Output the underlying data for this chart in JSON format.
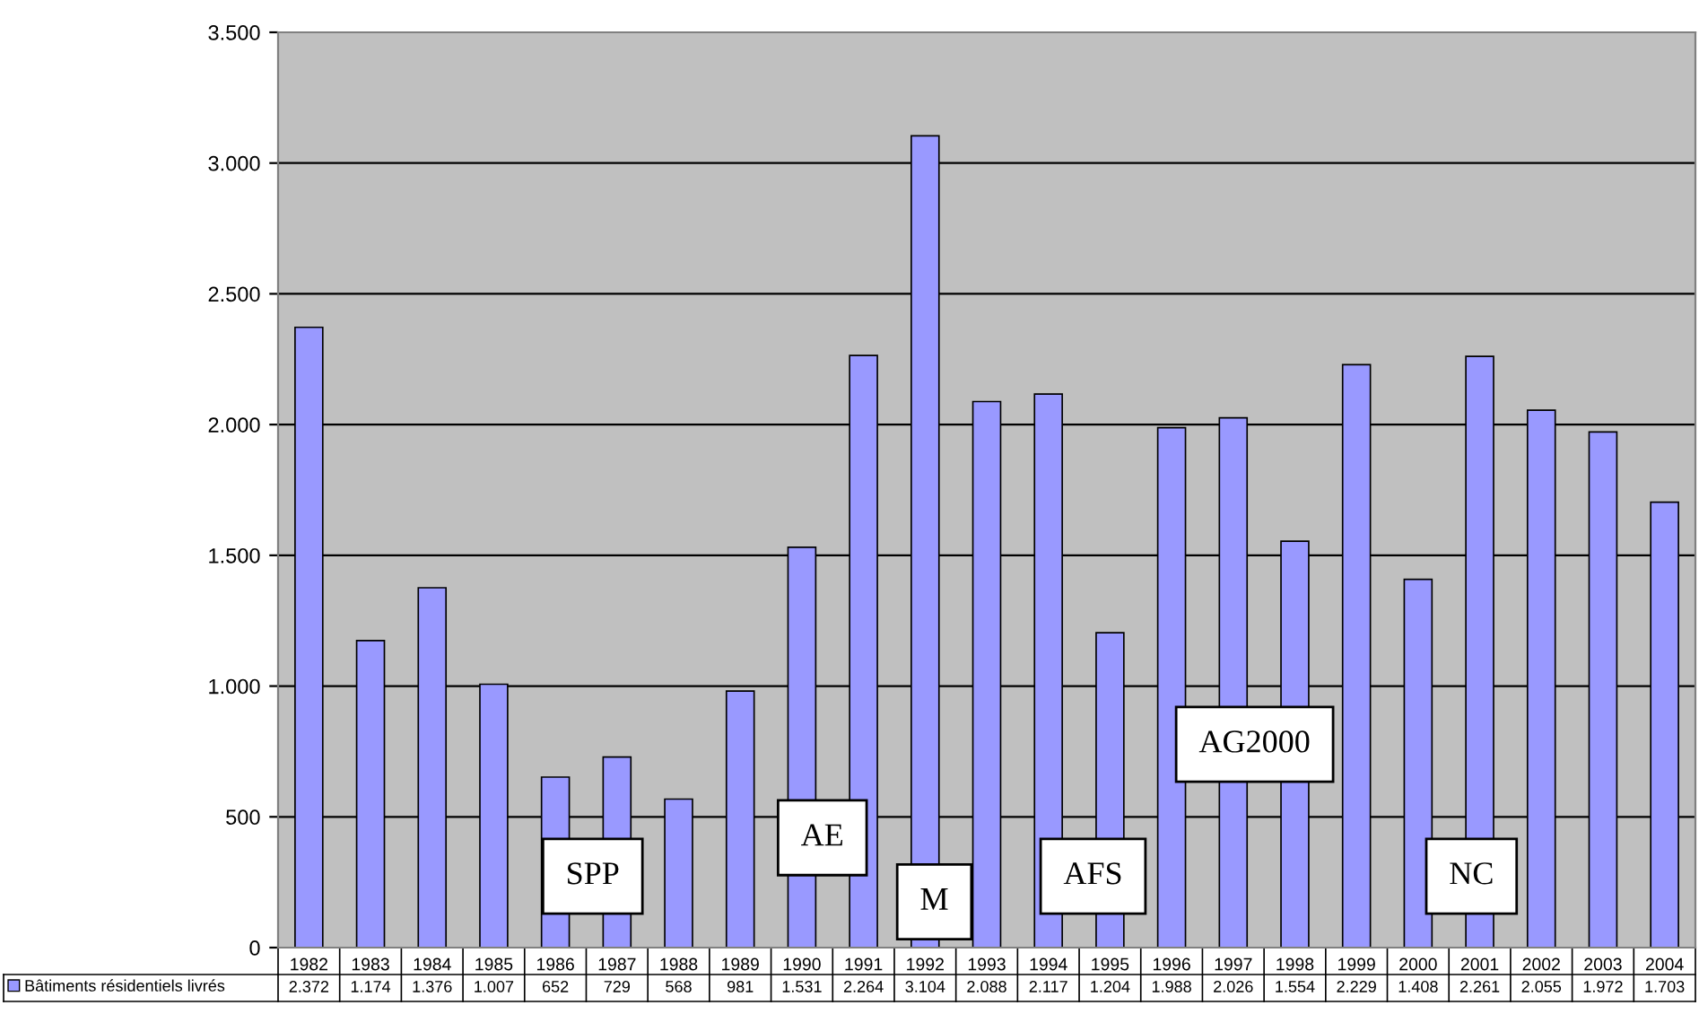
{
  "chart_data": {
    "type": "bar",
    "categories": [
      "1982",
      "1983",
      "1984",
      "1985",
      "1986",
      "1987",
      "1988",
      "1989",
      "1990",
      "1991",
      "1992",
      "1993",
      "1994",
      "1995",
      "1996",
      "1997",
      "1998",
      "1999",
      "2000",
      "2001",
      "2002",
      "2003",
      "2004"
    ],
    "series": [
      {
        "name": "Bâtiments résidentiels livrés",
        "color": "#9999ff",
        "values": [
          2372,
          1174,
          1376,
          1007,
          652,
          729,
          568,
          981,
          1531,
          2264,
          3104,
          2088,
          2117,
          1204,
          1988,
          2026,
          1554,
          2229,
          1408,
          2261,
          2055,
          1972,
          1703
        ],
        "value_labels": [
          "2.372",
          "1.174",
          "1.376",
          "1.007",
          "652",
          "729",
          "568",
          "981",
          "1.531",
          "2.264",
          "3.104",
          "2.088",
          "2.117",
          "1.204",
          "1.988",
          "2.026",
          "1.554",
          "2.229",
          "1.408",
          "2.261",
          "2.055",
          "1.972",
          "1.703"
        ]
      }
    ],
    "ylim": [
      0,
      3500
    ],
    "yticks": [
      {
        "value": 0,
        "label": "0"
      },
      {
        "value": 500,
        "label": "500"
      },
      {
        "value": 1000,
        "label": "1.000"
      },
      {
        "value": 1500,
        "label": "1.500"
      },
      {
        "value": 2000,
        "label": "2.000"
      },
      {
        "value": 2500,
        "label": "2.500"
      },
      {
        "value": 3000,
        "label": "3.000"
      },
      {
        "value": 3500,
        "label": "3.500"
      }
    ],
    "grid": "y",
    "legend": "bottom left",
    "annotations": [
      "SPP",
      "AE",
      "M",
      "AFS",
      "AG2000",
      "NC"
    ]
  }
}
